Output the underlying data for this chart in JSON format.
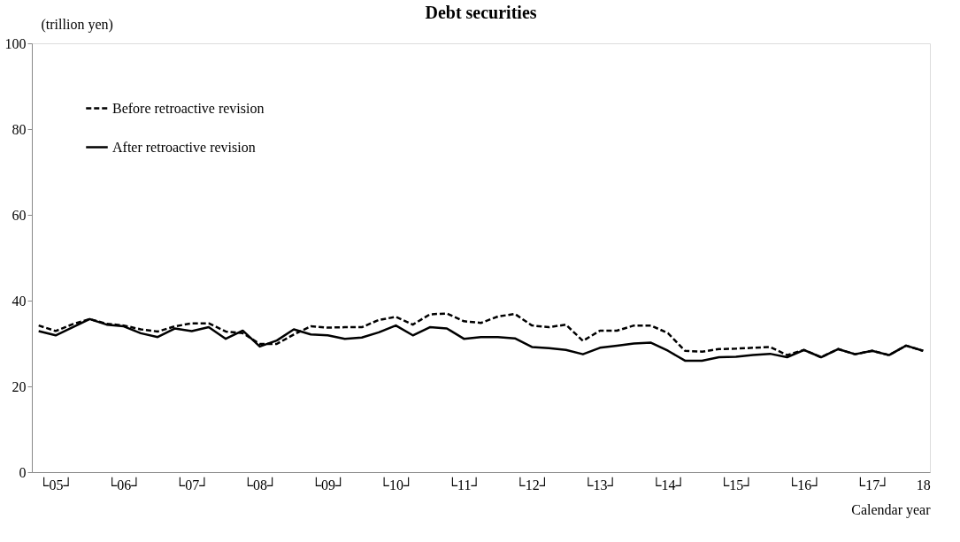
{
  "chart_data": {
    "type": "line",
    "title": "Debt securities",
    "ylabel": "(trillion  yen)",
    "xlabel": "Calendar year",
    "categories": [
      null,
      "└05┘",
      null,
      null,
      null,
      "└06┘",
      null,
      null,
      null,
      "└07┘",
      null,
      null,
      null,
      "└08┘",
      null,
      null,
      null,
      "└09┘",
      null,
      null,
      null,
      "└10┘",
      null,
      null,
      null,
      "└11┘",
      null,
      null,
      null,
      "└12┘",
      null,
      null,
      null,
      "└13┘",
      null,
      null,
      null,
      "└14┘",
      null,
      null,
      null,
      "└15┘",
      null,
      null,
      null,
      "└16┘",
      null,
      null,
      null,
      "└17┘",
      null,
      null,
      "18"
    ],
    "series": [
      {
        "name": "Before retroactive revision",
        "color": "#000000",
        "line_style": "dashed",
        "values": [
          34.2,
          32.9,
          34.5,
          35.7,
          34.6,
          34.2,
          33.3,
          32.8,
          34.0,
          34.7,
          34.7,
          32.8,
          32.4,
          29.9,
          29.9,
          32.1,
          34.0,
          33.7,
          33.8,
          33.8,
          35.5,
          36.2,
          34.4,
          36.8,
          37.0,
          35.2,
          34.8,
          36.3,
          36.9,
          34.2,
          33.8,
          34.4,
          30.6,
          33.0,
          33.0,
          34.2,
          34.2,
          32.4,
          28.3,
          28.1,
          28.7,
          28.8,
          29.0,
          29.2,
          27.3,
          28.5,
          26.8,
          28.7,
          27.5,
          28.3,
          27.3,
          29.5,
          28.3
        ]
      },
      {
        "name": "After retroactive revision",
        "color": "#000000",
        "line_style": "solid",
        "values": [
          32.9,
          31.9,
          33.8,
          35.7,
          34.4,
          34.0,
          32.4,
          31.5,
          33.5,
          32.9,
          33.8,
          31.1,
          33.0,
          29.3,
          30.7,
          33.3,
          32.1,
          31.9,
          31.1,
          31.4,
          32.6,
          34.2,
          31.9,
          33.8,
          33.5,
          31.1,
          31.5,
          31.5,
          31.2,
          29.2,
          28.9,
          28.5,
          27.5,
          29.0,
          29.5,
          30.0,
          30.2,
          28.3,
          26.0,
          26.0,
          26.8,
          26.9,
          27.3,
          27.6,
          26.8,
          28.5,
          26.8,
          28.7,
          27.5,
          28.3,
          27.3,
          29.5,
          28.3
        ]
      }
    ],
    "ylim": [
      0,
      100
    ],
    "yticks": [
      0,
      20,
      40,
      60,
      80,
      100
    ],
    "grid": false,
    "legend": "top left",
    "marker": "none"
  }
}
